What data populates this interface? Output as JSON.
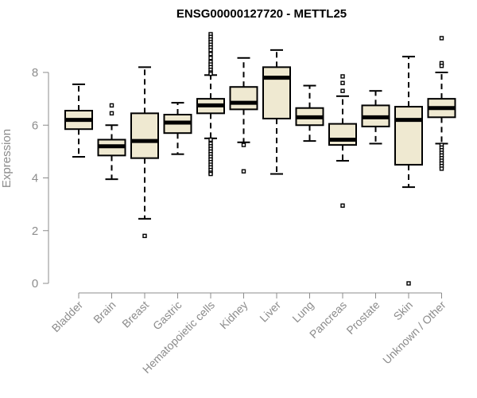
{
  "chart_data": {
    "type": "box",
    "title": "ENSG00000127720 - METTL25",
    "ylabel": "Expression",
    "ylim": [
      0,
      9.6
    ],
    "yticks": [
      0,
      2,
      4,
      6,
      8
    ],
    "box_fill": "#efe9d1",
    "categories": [
      {
        "name": "Bladder",
        "min": 4.8,
        "q1": 5.85,
        "median": 6.2,
        "q3": 6.55,
        "max": 7.55,
        "outliers": []
      },
      {
        "name": "Brain",
        "min": 3.95,
        "q1": 4.85,
        "median": 5.2,
        "q3": 5.45,
        "max": 6.0,
        "outliers": [
          6.45,
          6.75
        ]
      },
      {
        "name": "Breast",
        "min": 2.45,
        "q1": 4.75,
        "median": 5.4,
        "q3": 6.45,
        "max": 8.2,
        "outliers": [
          1.8
        ]
      },
      {
        "name": "Gastric",
        "min": 4.9,
        "q1": 5.7,
        "median": 6.1,
        "q3": 6.4,
        "max": 6.85,
        "outliers": []
      },
      {
        "name": "Hematopoietic cells",
        "min": 5.5,
        "q1": 6.45,
        "median": 6.75,
        "q3": 7.0,
        "max": 7.9,
        "outliers": [
          9.45,
          9.35,
          9.25,
          9.15,
          9.05,
          8.95,
          8.85,
          8.7,
          8.55,
          8.4,
          8.3,
          8.2,
          8.1,
          8.0,
          7.95,
          5.45,
          5.3,
          5.2,
          5.1,
          5.0,
          4.9,
          4.8,
          4.7,
          4.6,
          4.5,
          4.4,
          4.3,
          4.2,
          4.15
        ]
      },
      {
        "name": "Kidney",
        "min": 5.35,
        "q1": 6.6,
        "median": 6.85,
        "q3": 7.45,
        "max": 8.55,
        "outliers": [
          5.25,
          4.25
        ]
      },
      {
        "name": "Liver",
        "min": 4.15,
        "q1": 6.25,
        "median": 7.8,
        "q3": 8.2,
        "max": 8.85,
        "outliers": []
      },
      {
        "name": "Lung",
        "min": 5.4,
        "q1": 6.0,
        "median": 6.3,
        "q3": 6.65,
        "max": 7.5,
        "outliers": []
      },
      {
        "name": "Pancreas",
        "min": 4.65,
        "q1": 5.25,
        "median": 5.45,
        "q3": 6.05,
        "max": 7.1,
        "outliers": [
          7.85,
          7.6,
          7.3,
          2.95
        ]
      },
      {
        "name": "Prostate",
        "min": 5.3,
        "q1": 5.95,
        "median": 6.3,
        "q3": 6.75,
        "max": 7.3,
        "outliers": []
      },
      {
        "name": "Skin",
        "min": 3.65,
        "q1": 4.5,
        "median": 6.2,
        "q3": 6.7,
        "max": 8.6,
        "outliers": [
          0.0
        ]
      },
      {
        "name": "Unknown / Other",
        "min": 5.3,
        "q1": 6.3,
        "median": 6.65,
        "q3": 7.0,
        "max": 8.0,
        "outliers": [
          9.3,
          8.35,
          8.25,
          5.25,
          5.15,
          5.05,
          4.95,
          4.85,
          4.75,
          4.65,
          4.55,
          4.45,
          4.35
        ]
      }
    ]
  }
}
